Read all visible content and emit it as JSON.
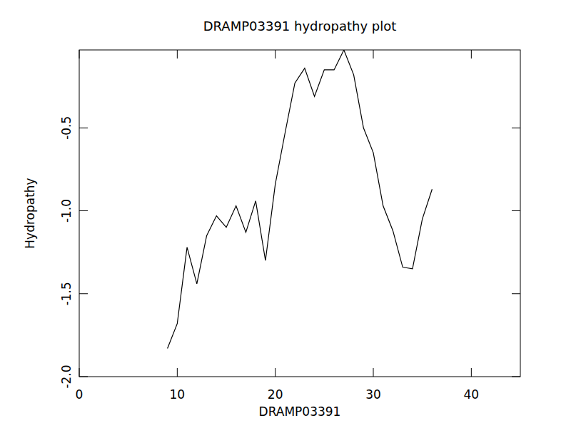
{
  "chart_data": {
    "type": "line",
    "title": "DRAMP03391 hydropathy plot",
    "x_label": "DRAMP03391",
    "y_label": "Hydropathy",
    "x": [
      9,
      10,
      11,
      12,
      13,
      14,
      15,
      16,
      17,
      18,
      19,
      20,
      21,
      22,
      23,
      24,
      25,
      26,
      27,
      28,
      29,
      30,
      31,
      32,
      33,
      34,
      35,
      36
    ],
    "values": [
      -1.83,
      -1.68,
      -1.22,
      -1.44,
      -1.15,
      -1.03,
      -1.1,
      -0.97,
      -1.13,
      -0.94,
      -1.3,
      -0.84,
      -0.53,
      -0.23,
      -0.14,
      -0.31,
      -0.15,
      -0.15,
      -0.03,
      -0.18,
      -0.5,
      -0.65,
      -0.97,
      -1.12,
      -1.34,
      -1.35,
      -1.05,
      -0.87
    ],
    "color": "#000000",
    "xlim": [
      0,
      45
    ],
    "xticks": [
      0,
      10,
      20,
      30,
      40
    ],
    "ylim": [
      -2.0,
      -0.03
    ],
    "yticks": [
      {
        "value": -2.0,
        "label": "-2.0"
      },
      -1.5,
      {
        "value": -1.0,
        "label": "-1.0"
      },
      -0.5
    ],
    "grid": false
  }
}
